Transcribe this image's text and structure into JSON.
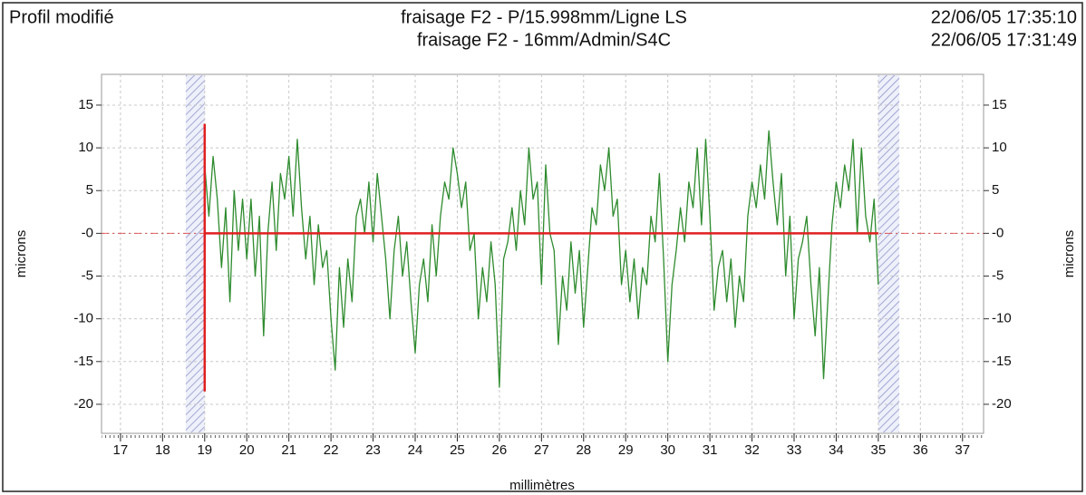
{
  "chart_data": {
    "type": "line",
    "title": "Profil modifié",
    "subtitle": [
      "fraisage F2 - P/15.998mm/Ligne LS",
      "fraisage F2 - 16mm/Admin/S4C"
    ],
    "timestamps": [
      "22/06/05 17:35:10",
      "22/06/05 17:31:49"
    ],
    "xlabel": "millimètres",
    "ylabel": "microns",
    "y2label": "microns",
    "color": "#2e8b2e",
    "grid": true,
    "xlim": [
      16.55,
      37.5
    ],
    "ylim": [
      -23.4,
      18.6
    ],
    "xticks": [
      17,
      18,
      19,
      20,
      21,
      22,
      23,
      24,
      25,
      26,
      27,
      28,
      29,
      30,
      31,
      32,
      33,
      34,
      35,
      36,
      37
    ],
    "yticks": [
      15,
      10,
      5,
      {
        "value": 0,
        "label": "-0"
      },
      -5,
      -10,
      -15,
      -20
    ],
    "cursor": {
      "x": 19,
      "ymin": -18.5,
      "ymax": 12.8,
      "color": "#e02020"
    },
    "baseline": {
      "y": 0,
      "xmin": 19,
      "xmax": 35,
      "color": "#e02020"
    },
    "excluded_zones": [
      [
        18.55,
        19.0
      ],
      [
        35.0,
        35.5
      ]
    ],
    "x": [
      19,
      19.1,
      19.2,
      19.3,
      19.4,
      19.5,
      19.6,
      19.7,
      19.8,
      19.9,
      20,
      20.1,
      20.2,
      20.3,
      20.4,
      20.5,
      20.6,
      20.7,
      20.8,
      20.9,
      21,
      21.1,
      21.2,
      21.3,
      21.4,
      21.5,
      21.6,
      21.7,
      21.8,
      21.9,
      22,
      22.1,
      22.2,
      22.3,
      22.4,
      22.5,
      22.6,
      22.7,
      22.8,
      22.9,
      23,
      23.1,
      23.2,
      23.3,
      23.4,
      23.5,
      23.6,
      23.7,
      23.8,
      23.9,
      24,
      24.1,
      24.2,
      24.3,
      24.4,
      24.5,
      24.6,
      24.7,
      24.8,
      24.9,
      25,
      25.1,
      25.2,
      25.3,
      25.4,
      25.5,
      25.6,
      25.7,
      25.8,
      25.9,
      26,
      26.1,
      26.2,
      26.3,
      26.4,
      26.5,
      26.6,
      26.7,
      26.8,
      26.9,
      27,
      27.1,
      27.2,
      27.3,
      27.4,
      27.5,
      27.6,
      27.7,
      27.8,
      27.9,
      28,
      28.1,
      28.2,
      28.3,
      28.4,
      28.5,
      28.6,
      28.7,
      28.8,
      28.9,
      29,
      29.1,
      29.2,
      29.3,
      29.4,
      29.5,
      29.6,
      29.7,
      29.8,
      29.9,
      30,
      30.1,
      30.2,
      30.3,
      30.4,
      30.5,
      30.6,
      30.7,
      30.8,
      30.9,
      31,
      31.1,
      31.2,
      31.3,
      31.4,
      31.5,
      31.6,
      31.7,
      31.8,
      31.9,
      32,
      32.1,
      32.2,
      32.3,
      32.4,
      32.5,
      32.6,
      32.7,
      32.8,
      32.9,
      33,
      33.1,
      33.2,
      33.3,
      33.4,
      33.5,
      33.6,
      33.7,
      33.8,
      33.9,
      34,
      34.1,
      34.2,
      34.3,
      34.4,
      34.5,
      34.6,
      34.7,
      34.8,
      34.9,
      35
    ],
    "values": [
      8,
      2,
      9,
      4,
      -4,
      3,
      -8,
      5,
      -2,
      4,
      -3,
      4,
      -5,
      2,
      -12,
      0,
      6,
      -2,
      7,
      4,
      9,
      2,
      11,
      3,
      -3,
      2,
      -6,
      1,
      -4,
      -2,
      -10,
      -16,
      -4,
      -11,
      -3,
      -8,
      2,
      4,
      0,
      6,
      -1,
      7,
      2,
      -3,
      -10,
      -2,
      2,
      -5,
      -1,
      -8,
      -14,
      -6,
      -3,
      -8,
      1,
      -5,
      2,
      6,
      4,
      10,
      7,
      3,
      6,
      -2,
      0,
      -10,
      -4,
      -8,
      -1,
      -6,
      -18,
      -3,
      -1,
      3,
      -2,
      5,
      1,
      10,
      4,
      6,
      -6,
      8,
      0,
      -2,
      -13,
      -5,
      -9,
      -1,
      -7,
      -2,
      -11,
      -4,
      3,
      1,
      8,
      5,
      10,
      2,
      4,
      -6,
      -2,
      -8,
      -3,
      -10,
      -4,
      -6,
      2,
      -1,
      7,
      -3,
      -15,
      -6,
      -2,
      3,
      -1,
      6,
      3,
      10,
      1,
      11,
      2,
      -9,
      -4,
      -2,
      -8,
      -3,
      -11,
      -5,
      -8,
      2,
      6,
      3,
      8,
      4,
      12,
      6,
      1,
      7,
      -5,
      2,
      -10,
      -3,
      -1,
      2,
      -6,
      -12,
      -4,
      -17,
      -8,
      1,
      6,
      3,
      8,
      5,
      11,
      0,
      10,
      2,
      -1,
      4,
      -6
    ]
  }
}
